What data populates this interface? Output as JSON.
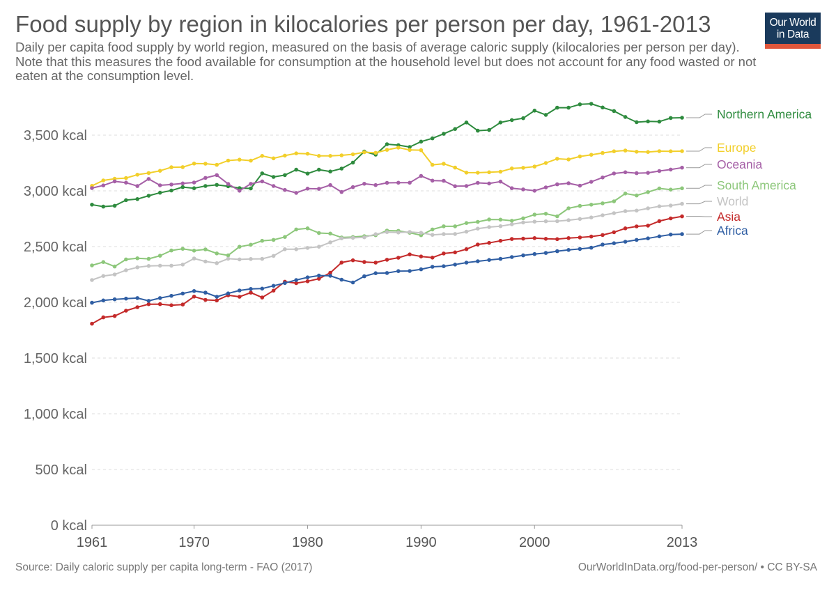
{
  "header": {
    "title": "Food supply by region in kilocalories per person per day, 1961-2013",
    "subtitle": "Daily per capita food supply by world region, measured on the basis of average caloric supply (kilocalories per person per day). Note that this measures the food available for consumption at the household level but does not account for any food wasted or not eaten at the consumption level."
  },
  "logo": {
    "line1": "Our World",
    "line2": "in Data",
    "bg_color": "#1a3a5c",
    "accent_color": "#e0563b"
  },
  "footer": {
    "source": "Source: Daily caloric supply per capita long-term - FAO (2017)",
    "credit": "OurWorldInData.org/food-per-person/ • CC BY-SA"
  },
  "chart_data": {
    "type": "line",
    "title": "Food supply by region in kilocalories per person per day, 1961-2013",
    "xlabel": "",
    "ylabel": "",
    "xlim": [
      1961,
      2013
    ],
    "ylim": [
      0,
      3800
    ],
    "grid": true,
    "legend": "right (inline labels at line ends)",
    "x_ticks": [
      1961,
      1970,
      1980,
      1990,
      2000,
      2013
    ],
    "y_ticks": [
      {
        "value": 0,
        "label": "0 kcal"
      },
      {
        "value": 500,
        "label": "500 kcal"
      },
      {
        "value": 1000,
        "label": "1,000 kcal"
      },
      {
        "value": 1500,
        "label": "1,500 kcal"
      },
      {
        "value": 2000,
        "label": "2,000 kcal"
      },
      {
        "value": 2500,
        "label": "2,500 kcal"
      },
      {
        "value": 3000,
        "label": "3,000 kcal"
      },
      {
        "value": 3500,
        "label": "3,500 kcal"
      }
    ],
    "x": [
      1961,
      1962,
      1963,
      1964,
      1965,
      1966,
      1967,
      1968,
      1969,
      1970,
      1971,
      1972,
      1973,
      1974,
      1975,
      1976,
      1977,
      1978,
      1979,
      1980,
      1981,
      1982,
      1983,
      1984,
      1985,
      1986,
      1987,
      1988,
      1989,
      1990,
      1991,
      1992,
      1993,
      1994,
      1995,
      1996,
      1997,
      1998,
      1999,
      2000,
      2001,
      2002,
      2003,
      2004,
      2005,
      2006,
      2007,
      2008,
      2009,
      2010,
      2011,
      2012,
      2013
    ],
    "series": [
      {
        "name": "Northern America",
        "color": "#2e8b3e",
        "values": [
          2876,
          2859,
          2866,
          2917,
          2926,
          2956,
          2983,
          3003,
          3034,
          3024,
          3044,
          3054,
          3041,
          3025,
          3022,
          3157,
          3125,
          3141,
          3190,
          3155,
          3190,
          3174,
          3200,
          3254,
          3353,
          3325,
          3419,
          3410,
          3394,
          3442,
          3471,
          3512,
          3555,
          3614,
          3540,
          3546,
          3614,
          3635,
          3652,
          3720,
          3682,
          3746,
          3746,
          3776,
          3781,
          3748,
          3716,
          3663,
          3616,
          3623,
          3621,
          3654,
          3656
        ]
      },
      {
        "name": "Europe",
        "color": "#f2cf2b",
        "values": [
          3045,
          3094,
          3109,
          3115,
          3145,
          3160,
          3180,
          3212,
          3213,
          3245,
          3244,
          3234,
          3272,
          3280,
          3271,
          3314,
          3292,
          3316,
          3336,
          3333,
          3314,
          3314,
          3319,
          3328,
          3347,
          3341,
          3368,
          3388,
          3367,
          3365,
          3234,
          3243,
          3209,
          3164,
          3163,
          3167,
          3172,
          3201,
          3207,
          3218,
          3250,
          3288,
          3282,
          3309,
          3324,
          3340,
          3355,
          3362,
          3351,
          3349,
          3356,
          3355,
          3356
        ]
      },
      {
        "name": "Oceania",
        "color": "#a55fa6",
        "values": [
          3025,
          3049,
          3085,
          3074,
          3043,
          3107,
          3050,
          3057,
          3067,
          3075,
          3116,
          3141,
          3062,
          3001,
          3063,
          3085,
          3044,
          3008,
          2982,
          3020,
          3018,
          3052,
          2990,
          3034,
          3064,
          3052,
          3072,
          3073,
          3073,
          3134,
          3092,
          3090,
          3042,
          3044,
          3072,
          3066,
          3083,
          3024,
          3013,
          3001,
          3031,
          3059,
          3068,
          3047,
          3081,
          3120,
          3156,
          3167,
          3159,
          3162,
          3178,
          3191,
          3208
        ]
      },
      {
        "name": "South America",
        "color": "#8dc77b",
        "values": [
          2331,
          2361,
          2321,
          2385,
          2395,
          2390,
          2418,
          2465,
          2480,
          2464,
          2475,
          2439,
          2421,
          2499,
          2517,
          2552,
          2560,
          2586,
          2654,
          2664,
          2622,
          2617,
          2582,
          2586,
          2594,
          2602,
          2644,
          2641,
          2624,
          2602,
          2654,
          2682,
          2682,
          2711,
          2722,
          2743,
          2742,
          2732,
          2754,
          2787,
          2795,
          2772,
          2844,
          2865,
          2876,
          2888,
          2906,
          2976,
          2959,
          2989,
          3022,
          3011,
          3023
        ]
      },
      {
        "name": "World",
        "color": "#c4c4c4",
        "values": [
          2200,
          2236,
          2250,
          2288,
          2314,
          2326,
          2329,
          2329,
          2339,
          2393,
          2366,
          2351,
          2391,
          2385,
          2389,
          2390,
          2416,
          2476,
          2476,
          2488,
          2499,
          2538,
          2574,
          2579,
          2583,
          2611,
          2630,
          2626,
          2631,
          2624,
          2605,
          2612,
          2613,
          2634,
          2661,
          2675,
          2683,
          2700,
          2716,
          2724,
          2727,
          2728,
          2737,
          2748,
          2761,
          2781,
          2800,
          2818,
          2823,
          2843,
          2861,
          2868,
          2884
        ]
      },
      {
        "name": "Asia",
        "color": "#c42a2a",
        "values": [
          1808,
          1865,
          1877,
          1925,
          1956,
          1983,
          1984,
          1974,
          1980,
          2051,
          2022,
          2017,
          2063,
          2050,
          2087,
          2043,
          2105,
          2185,
          2172,
          2189,
          2212,
          2265,
          2357,
          2377,
          2362,
          2356,
          2382,
          2400,
          2430,
          2411,
          2401,
          2438,
          2448,
          2477,
          2519,
          2533,
          2552,
          2568,
          2571,
          2576,
          2570,
          2567,
          2576,
          2582,
          2590,
          2604,
          2629,
          2664,
          2681,
          2688,
          2729,
          2753,
          2771
        ]
      },
      {
        "name": "Africa",
        "color": "#2f5ea3",
        "values": [
          1996,
          2017,
          2027,
          2033,
          2038,
          2013,
          2038,
          2058,
          2079,
          2101,
          2087,
          2050,
          2080,
          2106,
          2120,
          2123,
          2148,
          2173,
          2200,
          2224,
          2240,
          2238,
          2203,
          2178,
          2234,
          2261,
          2263,
          2280,
          2281,
          2296,
          2319,
          2324,
          2339,
          2356,
          2368,
          2380,
          2390,
          2406,
          2421,
          2433,
          2443,
          2459,
          2470,
          2479,
          2490,
          2518,
          2530,
          2544,
          2560,
          2574,
          2592,
          2608,
          2612
        ]
      }
    ]
  }
}
